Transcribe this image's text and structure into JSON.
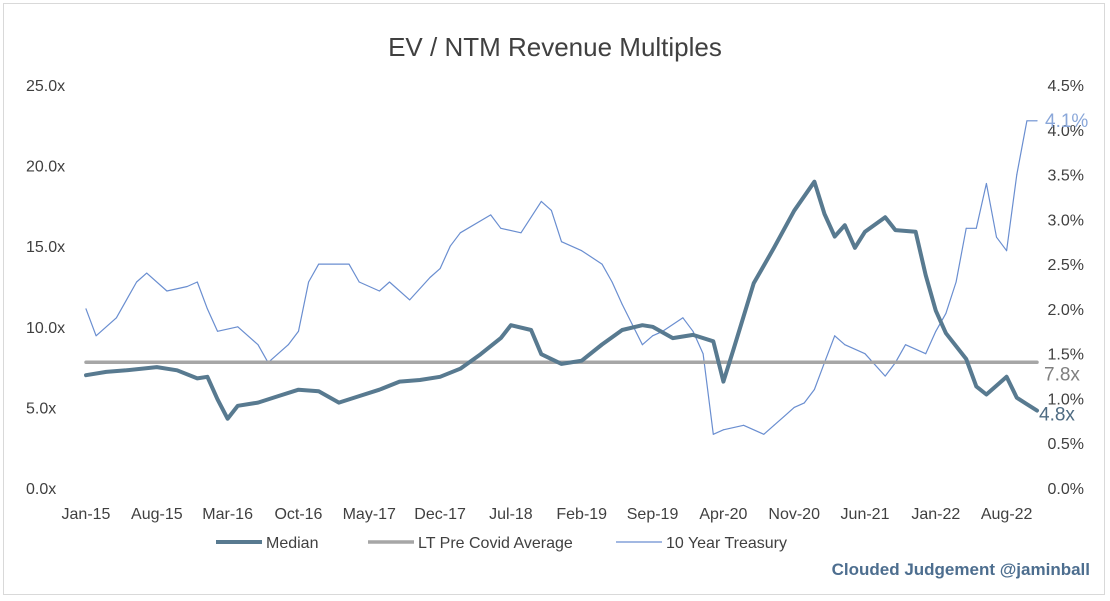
{
  "chart_data": {
    "type": "line",
    "title": "EV / NTM Revenue Multiples",
    "x_tick_labels": [
      "Jan-15",
      "Aug-15",
      "Mar-16",
      "Oct-16",
      "May-17",
      "Dec-17",
      "Jul-18",
      "Feb-19",
      "Sep-19",
      "Apr-20",
      "Nov-20",
      "Jun-21",
      "Jan-22",
      "Aug-22"
    ],
    "y_left": {
      "ylim": [
        0,
        25
      ],
      "ticks": [
        0,
        5,
        10,
        15,
        20,
        25
      ],
      "tick_labels": [
        "0.0x",
        "5.0x",
        "10.0x",
        "15.0x",
        "20.0x",
        "25.0x"
      ]
    },
    "y_right": {
      "ylim": [
        0,
        4.5
      ],
      "ticks": [
        0,
        0.5,
        1.0,
        1.5,
        2.0,
        2.5,
        3.0,
        3.5,
        4.0,
        4.5
      ],
      "tick_labels": [
        "0.0%",
        "0.5%",
        "1.0%",
        "1.5%",
        "2.0%",
        "2.5%",
        "3.0%",
        "3.5%",
        "4.0%",
        "4.5%"
      ]
    },
    "legend_position": "bottom",
    "series": [
      {
        "name": "Median",
        "axis": "left",
        "color": "#587a90",
        "end_label": "4.8x",
        "points": [
          [
            "Jan-15",
            7.0
          ],
          [
            "Mar-15",
            7.2
          ],
          [
            "May-15",
            7.3
          ],
          [
            "Aug-15",
            7.5
          ],
          [
            "Oct-15",
            7.3
          ],
          [
            "Dec-15",
            6.8
          ],
          [
            "Jan-16",
            6.9
          ],
          [
            "Feb-16",
            5.5
          ],
          [
            "Mar-16",
            4.3
          ],
          [
            "Apr-16",
            5.1
          ],
          [
            "Jun-16",
            5.3
          ],
          [
            "Aug-16",
            5.7
          ],
          [
            "Oct-16",
            6.1
          ],
          [
            "Dec-16",
            6.0
          ],
          [
            "Feb-17",
            5.3
          ],
          [
            "Apr-17",
            5.7
          ],
          [
            "Jun-17",
            6.1
          ],
          [
            "Aug-17",
            6.6
          ],
          [
            "Oct-17",
            6.7
          ],
          [
            "Dec-17",
            6.9
          ],
          [
            "Feb-18",
            7.4
          ],
          [
            "Apr-18",
            8.3
          ],
          [
            "Jun-18",
            9.3
          ],
          [
            "Jul-18",
            10.1
          ],
          [
            "Sep-18",
            9.8
          ],
          [
            "Oct-18",
            8.3
          ],
          [
            "Dec-18",
            7.7
          ],
          [
            "Feb-19",
            7.9
          ],
          [
            "Apr-19",
            8.9
          ],
          [
            "Jun-19",
            9.8
          ],
          [
            "Aug-19",
            10.1
          ],
          [
            "Sep-19",
            10.0
          ],
          [
            "Nov-19",
            9.3
          ],
          [
            "Jan-20",
            9.5
          ],
          [
            "Mar-20",
            9.1
          ],
          [
            "Apr-20",
            6.6
          ],
          [
            "May-20",
            8.6
          ],
          [
            "Jul-20",
            12.7
          ],
          [
            "Sep-20",
            14.9
          ],
          [
            "Nov-20",
            17.2
          ],
          [
            "Jan-21",
            19.0
          ],
          [
            "Feb-21",
            17.0
          ],
          [
            "Mar-21",
            15.6
          ],
          [
            "Apr-21",
            16.3
          ],
          [
            "May-21",
            14.9
          ],
          [
            "Jun-21",
            15.9
          ],
          [
            "Aug-21",
            16.8
          ],
          [
            "Sep-21",
            16.0
          ],
          [
            "Nov-21",
            15.9
          ],
          [
            "Dec-21",
            13.2
          ],
          [
            "Jan-22",
            11.0
          ],
          [
            "Feb-22",
            9.6
          ],
          [
            "Apr-22",
            8.0
          ],
          [
            "May-22",
            6.3
          ],
          [
            "Jun-22",
            5.8
          ],
          [
            "Aug-22",
            6.9
          ],
          [
            "Sep-22",
            5.6
          ],
          [
            "Oct-22",
            5.2
          ],
          [
            "Nov-22",
            4.8
          ]
        ]
      },
      {
        "name": "LT Pre Covid Average",
        "axis": "left",
        "color": "#a6a6a6",
        "end_label": "7.8x",
        "points": [
          [
            "Jan-15",
            7.8
          ],
          [
            "Nov-22",
            7.8
          ]
        ]
      },
      {
        "name": "10 Year Treasury",
        "axis": "right",
        "color": "#6a8ed0",
        "end_label": "4.1%",
        "points": [
          [
            "Jan-15",
            2.0
          ],
          [
            "Feb-15",
            1.7
          ],
          [
            "Apr-15",
            1.9
          ],
          [
            "Jun-15",
            2.3
          ],
          [
            "Jul-15",
            2.4
          ],
          [
            "Sep-15",
            2.2
          ],
          [
            "Nov-15",
            2.25
          ],
          [
            "Dec-15",
            2.3
          ],
          [
            "Jan-16",
            2.0
          ],
          [
            "Feb-16",
            1.75
          ],
          [
            "Apr-16",
            1.8
          ],
          [
            "Jun-16",
            1.6
          ],
          [
            "Jul-16",
            1.4
          ],
          [
            "Sep-16",
            1.6
          ],
          [
            "Oct-16",
            1.75
          ],
          [
            "Nov-16",
            2.3
          ],
          [
            "Dec-16",
            2.5
          ],
          [
            "Mar-17",
            2.5
          ],
          [
            "Apr-17",
            2.3
          ],
          [
            "Jun-17",
            2.2
          ],
          [
            "Jul-17",
            2.3
          ],
          [
            "Sep-17",
            2.1
          ],
          [
            "Nov-17",
            2.35
          ],
          [
            "Dec-17",
            2.45
          ],
          [
            "Jan-18",
            2.7
          ],
          [
            "Feb-18",
            2.85
          ],
          [
            "May-18",
            3.05
          ],
          [
            "Jun-18",
            2.9
          ],
          [
            "Aug-18",
            2.85
          ],
          [
            "Oct-18",
            3.2
          ],
          [
            "Nov-18",
            3.1
          ],
          [
            "Dec-18",
            2.75
          ],
          [
            "Feb-19",
            2.65
          ],
          [
            "Apr-19",
            2.5
          ],
          [
            "May-19",
            2.3
          ],
          [
            "Jun-19",
            2.05
          ],
          [
            "Aug-19",
            1.6
          ],
          [
            "Sep-19",
            1.7
          ],
          [
            "Oct-19",
            1.75
          ],
          [
            "Dec-19",
            1.9
          ],
          [
            "Jan-20",
            1.75
          ],
          [
            "Feb-20",
            1.5
          ],
          [
            "Mar-20",
            0.6
          ],
          [
            "Apr-20",
            0.65
          ],
          [
            "Jun-20",
            0.7
          ],
          [
            "Aug-20",
            0.6
          ],
          [
            "Sep-20",
            0.7
          ],
          [
            "Oct-20",
            0.8
          ],
          [
            "Nov-20",
            0.9
          ],
          [
            "Dec-20",
            0.95
          ],
          [
            "Jan-21",
            1.1
          ],
          [
            "Feb-21",
            1.4
          ],
          [
            "Mar-21",
            1.7
          ],
          [
            "Apr-21",
            1.6
          ],
          [
            "Jun-21",
            1.5
          ],
          [
            "Aug-21",
            1.25
          ],
          [
            "Sep-21",
            1.4
          ],
          [
            "Oct-21",
            1.6
          ],
          [
            "Dec-21",
            1.5
          ],
          [
            "Jan-22",
            1.75
          ],
          [
            "Feb-22",
            1.95
          ],
          [
            "Mar-22",
            2.3
          ],
          [
            "Apr-22",
            2.9
          ],
          [
            "May-22",
            2.9
          ],
          [
            "Jun-22",
            3.4
          ],
          [
            "Jul-22",
            2.8
          ],
          [
            "Aug-22",
            2.65
          ],
          [
            "Sep-22",
            3.5
          ],
          [
            "Oct-22",
            4.1
          ],
          [
            "Nov-22",
            4.1
          ]
        ]
      }
    ]
  },
  "credit": "Clouded Judgement @jaminball",
  "colors": {
    "text": "#404040",
    "credit": "#4d6e8f",
    "median_label": "#4e6b82",
    "treasury_label": "#8aa7d9",
    "avg_label": "#7f7f7f"
  }
}
